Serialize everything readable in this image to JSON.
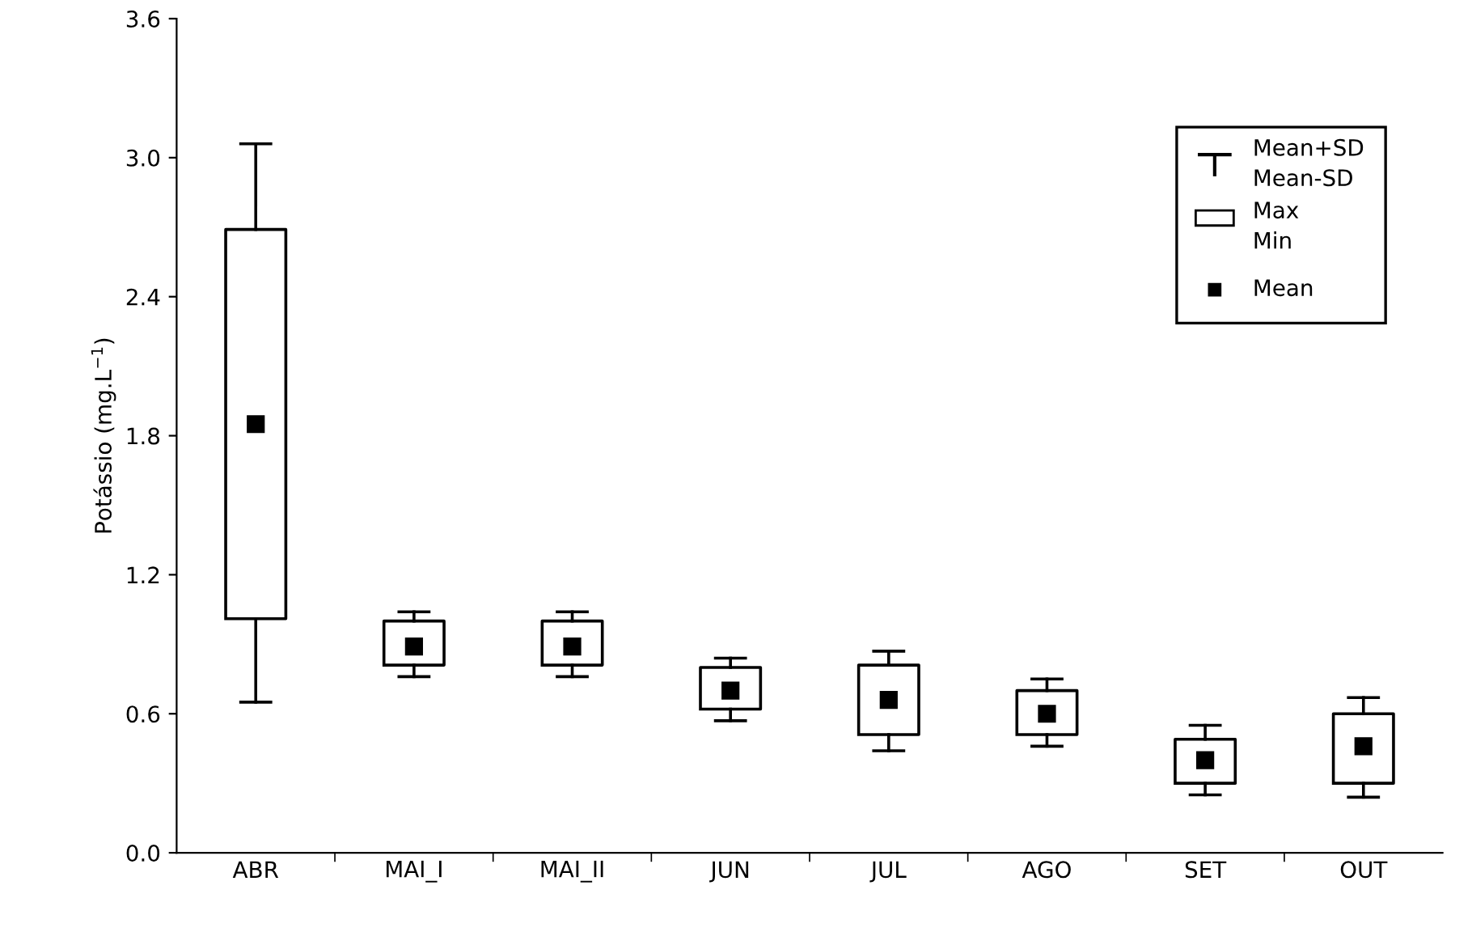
{
  "chart_data": {
    "type": "box",
    "ylabel": "Potássio (mg.L$^{−1}$)",
    "categories": [
      "ABR",
      "MAI_I",
      "MAI_II",
      "JUN",
      "JUL",
      "AGO",
      "SET",
      "OUT"
    ],
    "boxes": [
      {
        "low": 0.65,
        "q1": 1.01,
        "median": 1.85,
        "q3": 2.69,
        "high": 3.06
      },
      {
        "low": 0.76,
        "q1": 0.81,
        "median": 0.89,
        "q3": 1.0,
        "high": 1.04
      },
      {
        "low": 0.76,
        "q1": 0.81,
        "median": 0.89,
        "q3": 1.0,
        "high": 1.04
      },
      {
        "low": 0.57,
        "q1": 0.62,
        "median": 0.7,
        "q3": 0.8,
        "high": 0.84
      },
      {
        "low": 0.44,
        "q1": 0.51,
        "median": 0.66,
        "q3": 0.81,
        "high": 0.87
      },
      {
        "low": 0.46,
        "q1": 0.51,
        "median": 0.6,
        "q3": 0.7,
        "high": 0.75
      },
      {
        "low": 0.25,
        "q1": 0.3,
        "median": 0.4,
        "q3": 0.49,
        "high": 0.55
      },
      {
        "low": 0.24,
        "q1": 0.3,
        "median": 0.46,
        "q3": 0.6,
        "high": 0.67
      }
    ],
    "color": "#000000",
    "marker": "square",
    "ylim": [
      0,
      3.6
    ],
    "yticks": [
      {
        "value": 0,
        "label": "0.0"
      },
      {
        "value": 0.6,
        "label": "0.6"
      },
      {
        "value": 1.2,
        "label": "1.2"
      },
      {
        "value": 1.8,
        "label": "1.8"
      },
      {
        "value": 2.4,
        "label": "2.4"
      },
      {
        "value": 3.0,
        "label": "3.0"
      },
      {
        "value": 3.6,
        "label": "3.6"
      }
    ],
    "annotations": [
      "Mean+SD\nMean-SD",
      "Max\nMin",
      "Mean"
    ],
    "grid": false
  }
}
